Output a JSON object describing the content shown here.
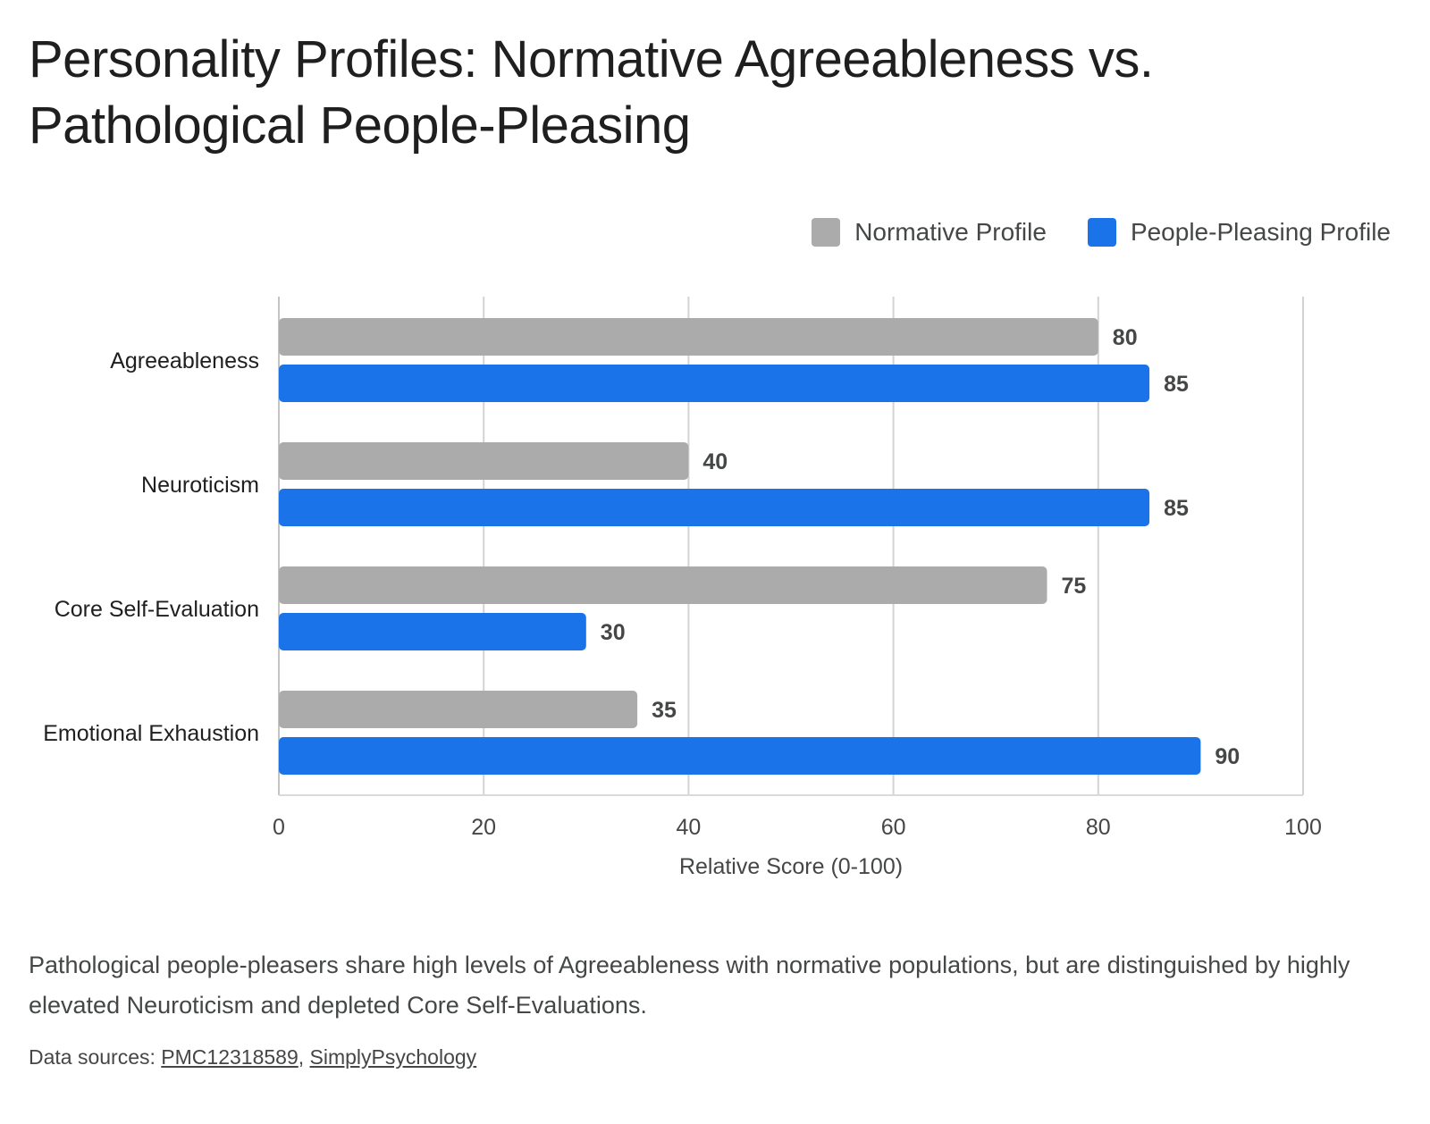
{
  "chart_data": {
    "type": "bar",
    "orientation": "horizontal",
    "title": "Personality Profiles: Normative Agreeableness vs. Pathological People-Pleasing",
    "categories": [
      "Agreeableness",
      "Neuroticism",
      "Core Self-Evaluation",
      "Emotional Exhaustion"
    ],
    "series": [
      {
        "name": "Normative Profile",
        "color": "#ababab",
        "values": [
          80,
          40,
          75,
          35
        ]
      },
      {
        "name": "People-Pleasing Profile",
        "color": "#1a73e8",
        "values": [
          85,
          85,
          30,
          90
        ]
      }
    ],
    "xlabel": "Relative Score (0-100)",
    "ylabel": "",
    "xlim": [
      0,
      100
    ],
    "xticks": [
      "0",
      "20",
      "40",
      "60",
      "80",
      "100"
    ],
    "grid": true,
    "legend_position": "top-right",
    "data_labels": true
  },
  "caption": "Pathological people-pleasers share high levels of Agreeableness with normative populations, but are distinguished by highly elevated Neuroticism and depleted Core Self-Evaluations.",
  "sources": {
    "prefix": "Data sources:",
    "separator": ",",
    "links": [
      "PMC12318589",
      "SimplyPsychology"
    ]
  }
}
